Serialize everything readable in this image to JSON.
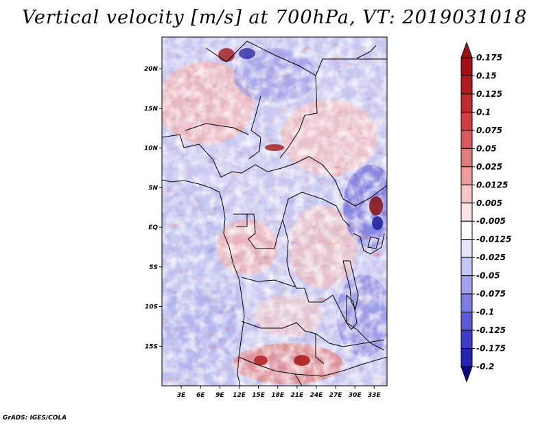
{
  "title": "Vertical velocity [m/s] at 700hPa, VT: 2019031018",
  "footer": "GrADS: IGES/COLA",
  "map": {
    "region": "Central Africa",
    "variable": "Vertical velocity",
    "units": "m/s",
    "level": "700hPa",
    "valid_time": "2019031018",
    "lon_range": [
      0,
      35
    ],
    "lat_range": [
      -20,
      24
    ],
    "lat_ticks": [
      {
        "label": "20N",
        "value": 20
      },
      {
        "label": "15N",
        "value": 15
      },
      {
        "label": "10N",
        "value": 10
      },
      {
        "label": "5N",
        "value": 5
      },
      {
        "label": "EQ",
        "value": 0
      },
      {
        "label": "5S",
        "value": -5
      },
      {
        "label": "10S",
        "value": -10
      },
      {
        "label": "15S",
        "value": -15
      }
    ],
    "lon_ticks": [
      {
        "label": "3E",
        "value": 3
      },
      {
        "label": "6E",
        "value": 6
      },
      {
        "label": "9E",
        "value": 9
      },
      {
        "label": "12E",
        "value": 12
      },
      {
        "label": "15E",
        "value": 15
      },
      {
        "label": "18E",
        "value": 18
      },
      {
        "label": "21E",
        "value": 21
      },
      {
        "label": "24E",
        "value": 24
      },
      {
        "label": "27E",
        "value": 27
      },
      {
        "label": "30E",
        "value": 30
      },
      {
        "label": "33E",
        "value": 33
      }
    ]
  },
  "colorbar": {
    "levels": [
      {
        "label": "0.175",
        "color": "#a01010"
      },
      {
        "label": "0.15",
        "color": "#b31c1c"
      },
      {
        "label": "0.125",
        "color": "#c42a2a"
      },
      {
        "label": "0.1",
        "color": "#d13c3c"
      },
      {
        "label": "0.075",
        "color": "#dc5858"
      },
      {
        "label": "0.05",
        "color": "#e37a7a"
      },
      {
        "label": "0.025",
        "color": "#ec9c9c"
      },
      {
        "label": "0.0125",
        "color": "#f5c4c4"
      },
      {
        "label": "0.005",
        "color": "#fbe4e4"
      },
      {
        "label": "-0.005",
        "color": "#ffffff"
      },
      {
        "label": "-0.0125",
        "color": "#e4e4fb"
      },
      {
        "label": "-0.025",
        "color": "#c4c4f5"
      },
      {
        "label": "-0.05",
        "color": "#a0a0ec"
      },
      {
        "label": "-0.075",
        "color": "#7c7ce2"
      },
      {
        "label": "-0.1",
        "color": "#5a5ad6"
      },
      {
        "label": "-0.125",
        "color": "#3c3cc8"
      },
      {
        "label": "-0.175",
        "color": "#2626b4"
      },
      {
        "label": "-0.2",
        "color": "#14149a"
      }
    ],
    "top_color": "#a01010",
    "bottom_color": "#0a0a88"
  }
}
